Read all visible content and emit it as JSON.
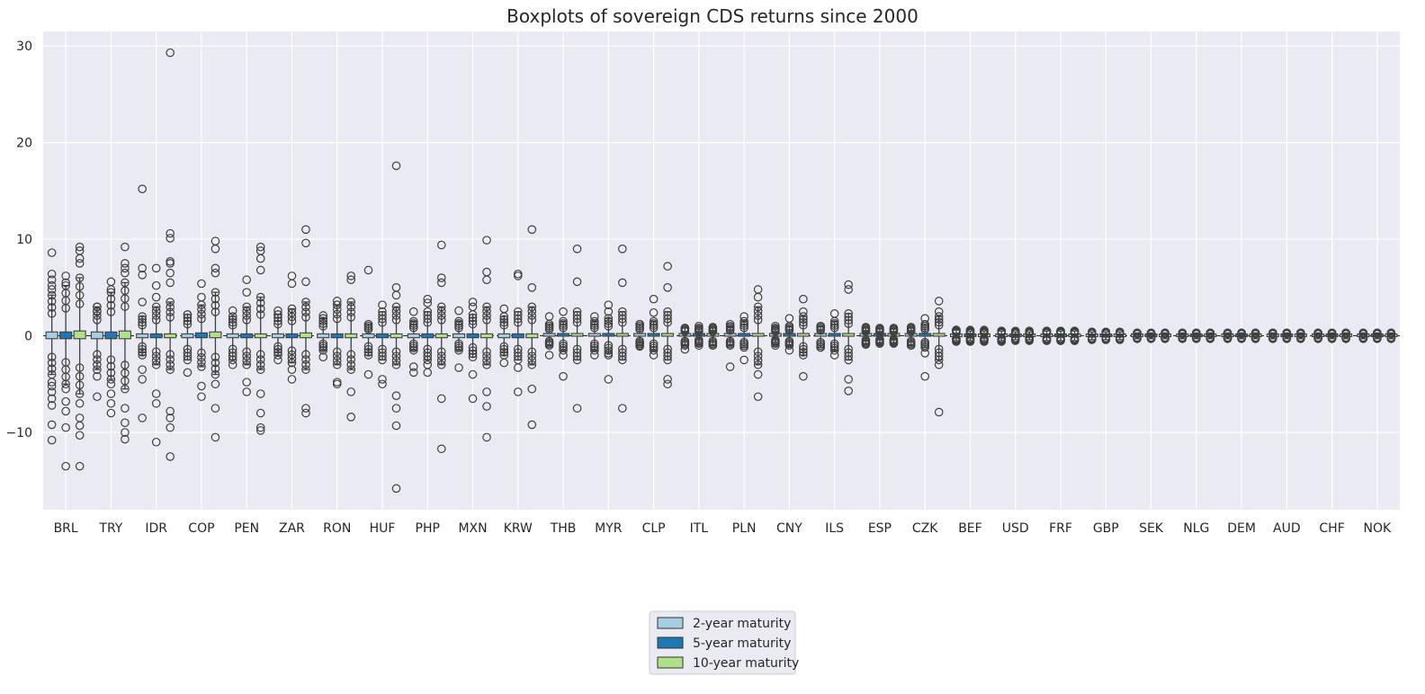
{
  "chart_data": {
    "type": "boxplot",
    "title": "Boxplots of sovereign CDS returns since 2000",
    "xlabel": "",
    "ylabel": "",
    "ylim": [
      -18,
      31.5
    ],
    "yticks": [
      -10,
      0,
      10,
      20,
      30
    ],
    "ytick_labels": [
      "−10",
      "0",
      "10",
      "20",
      "30"
    ],
    "grid": true,
    "reference_line": {
      "y": 0,
      "style": "dashed"
    },
    "legend_position": "bottom-center",
    "categories": [
      "BRL",
      "TRY",
      "IDR",
      "COP",
      "PEN",
      "ZAR",
      "RON",
      "HUF",
      "PHP",
      "MXN",
      "KRW",
      "THB",
      "MYR",
      "CLP",
      "ITL",
      "PLN",
      "CNY",
      "ILS",
      "ESP",
      "CZK",
      "BEF",
      "USD",
      "FRF",
      "GBP",
      "SEK",
      "NLG",
      "DEM",
      "AUD",
      "CHF",
      "NOK"
    ],
    "series": [
      {
        "name": "2-year maturity",
        "color": "#a6cee3",
        "whisker_low": [
          -4.0,
          -3.5,
          -2.0,
          -2.5,
          -2.5,
          -2.0,
          -1.5,
          -2.0,
          -1.5,
          -1.5,
          -2.0,
          -1.0,
          -1.5,
          -1.0,
          -1.0,
          -1.0,
          -0.8,
          -1.2,
          -0.8,
          -1.0,
          -0.5,
          -0.5,
          -0.5,
          -0.4,
          -0.3,
          -0.3,
          -0.3,
          -0.3,
          -0.3,
          -0.3
        ],
        "whisker_high": [
          4.2,
          3.0,
          2.0,
          2.2,
          2.0,
          2.2,
          1.8,
          1.2,
          1.5,
          1.5,
          2.0,
          1.2,
          1.5,
          1.2,
          0.8,
          1.0,
          0.8,
          1.0,
          0.8,
          0.8,
          0.6,
          0.5,
          0.5,
          0.4,
          0.3,
          0.3,
          0.3,
          0.3,
          0.3,
          0.3
        ],
        "outliers": [
          [
            8.6,
            6.4,
            5.8,
            5.2,
            4.8,
            -4.8,
            -5.2,
            -5.8,
            -6.5,
            -7.2,
            -9.2,
            -10.8
          ],
          [
            3.0,
            2.5,
            -4.2,
            -6.3
          ],
          [
            6.3,
            3.5,
            15.2,
            7.0,
            -3.5,
            -4.5,
            -8.5
          ],
          [
            2.2,
            -3.8
          ],
          [
            2.6,
            -3.0
          ],
          [
            2.6,
            2.2,
            -2.5
          ],
          [
            2.1,
            -2.2
          ],
          [
            6.8,
            -4.0
          ],
          [
            2.5,
            -3.2,
            -3.8
          ],
          [
            2.6,
            -3.3
          ],
          [
            2.8,
            -2.8
          ],
          [
            2.0,
            -2.0
          ],
          [
            2.0,
            -2.0
          ],
          [
            1.2,
            -1.1
          ],
          [
            0.8,
            -1.4
          ],
          [
            1.2,
            -3.2
          ],
          [
            1.0,
            -1.0
          ],
          [
            1.0,
            -1.2
          ],
          [
            0.9,
            -0.9
          ],
          [
            0.9,
            -1.0
          ],
          [
            0.6,
            -0.6
          ],
          [
            0.5,
            -0.6
          ],
          [
            0.5,
            -0.5
          ],
          [
            0.4,
            -0.4
          ],
          [
            0.3,
            -0.3
          ],
          [
            0.3,
            -0.3
          ],
          [
            0.3,
            -0.3
          ],
          [
            0.3,
            -0.3
          ],
          [
            0.3,
            -0.3
          ],
          [
            0.3,
            -0.3
          ]
        ]
      },
      {
        "name": "5-year maturity",
        "color": "#1f78b4",
        "whisker_low": [
          -5.0,
          -4.5,
          -3.0,
          -3.2,
          -3.0,
          -2.8,
          -3.0,
          -2.5,
          -2.5,
          -2.2,
          -2.5,
          -1.5,
          -1.8,
          -1.5,
          -0.8,
          -1.2,
          -1.0,
          -1.5,
          -0.7,
          -1.2,
          -0.5,
          -0.4,
          -0.5,
          -0.4,
          -0.3,
          -0.3,
          -0.3,
          -0.3,
          -0.3,
          -0.3
        ],
        "whisker_high": [
          5.2,
          4.5,
          3.0,
          3.2,
          3.0,
          2.8,
          3.2,
          2.5,
          2.5,
          2.2,
          2.5,
          1.5,
          1.8,
          1.5,
          0.8,
          1.5,
          1.0,
          1.5,
          0.7,
          1.2,
          0.5,
          0.4,
          0.5,
          0.4,
          0.3,
          0.3,
          0.3,
          0.3,
          0.3,
          0.3
        ],
        "outliers": [
          [
            5.5,
            6.2,
            -5.5,
            -6.8,
            -7.8,
            -9.5,
            -13.5
          ],
          [
            5.6,
            4.8,
            -5.0,
            -6.0,
            -7.0,
            -8.0
          ],
          [
            7.0,
            5.2,
            4.0,
            -6.0,
            -7.0,
            -11.0
          ],
          [
            5.4,
            4.0,
            -5.2,
            -6.3
          ],
          [
            5.8,
            4.5,
            -4.8,
            -5.8
          ],
          [
            6.2,
            5.4,
            -3.5,
            -4.5
          ],
          [
            3.6,
            3.2,
            -4.8,
            -5.0
          ],
          [
            3.2,
            -4.5,
            -5.0
          ],
          [
            3.4,
            3.8,
            -3.0,
            -3.8
          ],
          [
            3.5,
            3.0,
            -4.0,
            -6.5
          ],
          [
            6.4,
            6.2,
            -3.3,
            -5.8
          ],
          [
            2.5,
            -2.0,
            -4.2
          ],
          [
            3.2,
            2.5,
            -2.0,
            -4.5
          ],
          [
            3.8,
            2.4,
            -2.0
          ],
          [
            1.0,
            -1.0
          ],
          [
            2.0,
            -2.5
          ],
          [
            1.8,
            -1.5
          ],
          [
            2.3,
            -2.0
          ],
          [
            0.8,
            -0.8
          ],
          [
            1.8,
            -1.8,
            -4.2
          ],
          [
            0.6,
            -0.6
          ],
          [
            0.5,
            -0.5
          ],
          [
            0.5,
            -0.5
          ],
          [
            0.4,
            -0.4
          ],
          [
            0.3,
            -0.3
          ],
          [
            0.3,
            -0.3
          ],
          [
            0.3,
            -0.3
          ],
          [
            0.3,
            -0.3
          ],
          [
            0.3,
            -0.3
          ],
          [
            0.3,
            -0.3
          ]
        ]
      },
      {
        "name": "10-year maturity",
        "color": "#b2df8a",
        "whisker_low": [
          -6.0,
          -5.5,
          -3.5,
          -4.0,
          -3.5,
          -3.5,
          -3.5,
          -3.0,
          -3.0,
          -3.0,
          -3.0,
          -2.5,
          -2.5,
          -2.5,
          -1.0,
          -3.0,
          -2.0,
          -2.5,
          -0.7,
          -2.5,
          -0.5,
          -0.4,
          -0.5,
          -0.4,
          -0.3,
          -0.3,
          -0.3,
          -0.3,
          -0.3,
          -0.3
        ],
        "whisker_high": [
          6.0,
          5.5,
          3.5,
          4.5,
          4.0,
          3.5,
          3.5,
          3.0,
          3.0,
          3.0,
          3.0,
          2.5,
          2.5,
          2.5,
          0.8,
          3.0,
          2.0,
          2.3,
          0.7,
          2.0,
          0.5,
          0.4,
          0.5,
          0.4,
          0.3,
          0.3,
          0.3,
          0.3,
          0.3,
          0.3
        ],
        "outliers": [
          [
            9.2,
            8.8,
            8.0,
            7.5,
            -7.0,
            -8.5,
            -9.3,
            -10.3,
            -13.5
          ],
          [
            9.2,
            7.5,
            7.0,
            6.5,
            -7.5,
            -9.0,
            -10.0,
            -10.7
          ],
          [
            29.3,
            10.6,
            10.1,
            7.7,
            7.5,
            6.5,
            5.5,
            -7.8,
            -8.5,
            -9.5,
            -12.5
          ],
          [
            9.8,
            9.0,
            7.0,
            6.5,
            -5.0,
            -7.5,
            -10.5
          ],
          [
            9.2,
            8.8,
            8.0,
            6.8,
            -6.0,
            -8.0,
            -9.5,
            -9.8
          ],
          [
            11.0,
            9.6,
            5.6,
            -7.5,
            -8.0
          ],
          [
            6.2,
            5.8,
            -5.8,
            -8.4
          ],
          [
            17.6,
            5.0,
            4.2,
            -6.2,
            -7.5,
            -9.3,
            -15.8
          ],
          [
            9.4,
            6.0,
            5.5,
            -6.5,
            -11.7
          ],
          [
            9.9,
            6.6,
            5.8,
            -5.8,
            -7.3,
            -10.5
          ],
          [
            11.0,
            5.0,
            -5.5,
            -9.2
          ],
          [
            9.0,
            5.6,
            -7.5
          ],
          [
            9.0,
            5.5,
            -7.5
          ],
          [
            7.2,
            5.0,
            -4.5,
            -5.0
          ],
          [
            0.9,
            -1.0
          ],
          [
            4.8,
            4.0,
            -4.0,
            -6.3
          ],
          [
            3.8,
            2.5,
            -4.2
          ],
          [
            5.3,
            4.8,
            -4.5,
            -5.7
          ],
          [
            0.8,
            -0.8
          ],
          [
            3.6,
            2.5,
            -3.0,
            -7.9
          ],
          [
            0.6,
            -0.6
          ],
          [
            0.5,
            -0.5
          ],
          [
            0.5,
            -0.5
          ],
          [
            0.4,
            -0.4
          ],
          [
            0.3,
            -0.3
          ],
          [
            0.3,
            -0.3
          ],
          [
            0.3,
            -0.3
          ],
          [
            0.3,
            -0.3
          ],
          [
            0.3,
            -0.3
          ],
          [
            0.3,
            -0.3
          ]
        ]
      }
    ],
    "box_q1": [
      [
        -0.3,
        -0.3,
        -0.3
      ],
      [
        -0.3,
        -0.3,
        -0.3
      ],
      [
        -0.2,
        -0.2,
        -0.2
      ],
      [
        -0.2,
        -0.2,
        -0.2
      ],
      [
        -0.2,
        -0.2,
        -0.2
      ],
      [
        -0.2,
        -0.2,
        -0.2
      ],
      [
        -0.2,
        -0.2,
        -0.2
      ],
      [
        -0.2,
        -0.2,
        -0.2
      ],
      [
        -0.2,
        -0.2,
        -0.2
      ],
      [
        -0.2,
        -0.2,
        -0.2
      ],
      [
        -0.2,
        -0.2,
        -0.2
      ],
      [
        -0.1,
        -0.1,
        -0.1
      ],
      [
        -0.1,
        -0.1,
        -0.1
      ],
      [
        -0.1,
        -0.1,
        -0.1
      ],
      [
        -0.1,
        -0.1,
        -0.1
      ],
      [
        -0.1,
        -0.1,
        -0.1
      ],
      [
        -0.1,
        -0.1,
        -0.1
      ],
      [
        -0.1,
        -0.1,
        -0.1
      ],
      [
        -0.1,
        -0.1,
        -0.1
      ],
      [
        -0.1,
        -0.1,
        -0.1
      ],
      [
        -0.05,
        -0.05,
        -0.05
      ],
      [
        -0.05,
        -0.05,
        -0.05
      ],
      [
        -0.05,
        -0.05,
        -0.05
      ],
      [
        -0.05,
        -0.05,
        -0.05
      ],
      [
        -0.05,
        -0.05,
        -0.05
      ],
      [
        -0.05,
        -0.05,
        -0.05
      ],
      [
        -0.05,
        -0.05,
        -0.05
      ],
      [
        -0.05,
        -0.05,
        -0.05
      ],
      [
        -0.05,
        -0.05,
        -0.05
      ],
      [
        -0.05,
        -0.05,
        -0.05
      ]
    ],
    "box_q3": [
      [
        0.4,
        0.4,
        0.5
      ],
      [
        0.4,
        0.4,
        0.5
      ],
      [
        0.2,
        0.2,
        0.2
      ],
      [
        0.2,
        0.3,
        0.4
      ],
      [
        0.2,
        0.2,
        0.2
      ],
      [
        0.2,
        0.2,
        0.3
      ],
      [
        0.2,
        0.2,
        0.2
      ],
      [
        0.2,
        0.2,
        0.2
      ],
      [
        0.2,
        0.2,
        0.2
      ],
      [
        0.2,
        0.2,
        0.2
      ],
      [
        0.2,
        0.2,
        0.2
      ],
      [
        0.1,
        0.1,
        0.1
      ],
      [
        0.1,
        0.1,
        0.1
      ],
      [
        0.1,
        0.1,
        0.1
      ],
      [
        0.1,
        0.1,
        0.1
      ],
      [
        0.1,
        0.1,
        0.1
      ],
      [
        0.1,
        0.1,
        0.1
      ],
      [
        0.1,
        0.1,
        0.1
      ],
      [
        0.1,
        0.1,
        0.1
      ],
      [
        0.1,
        0.1,
        0.1
      ],
      [
        0.05,
        0.05,
        0.05
      ],
      [
        0.05,
        0.05,
        0.05
      ],
      [
        0.05,
        0.05,
        0.05
      ],
      [
        0.05,
        0.05,
        0.05
      ],
      [
        0.05,
        0.05,
        0.05
      ],
      [
        0.05,
        0.05,
        0.05
      ],
      [
        0.05,
        0.05,
        0.05
      ],
      [
        0.05,
        0.05,
        0.05
      ],
      [
        0.05,
        0.05,
        0.05
      ],
      [
        0.05,
        0.05,
        0.05
      ]
    ]
  }
}
